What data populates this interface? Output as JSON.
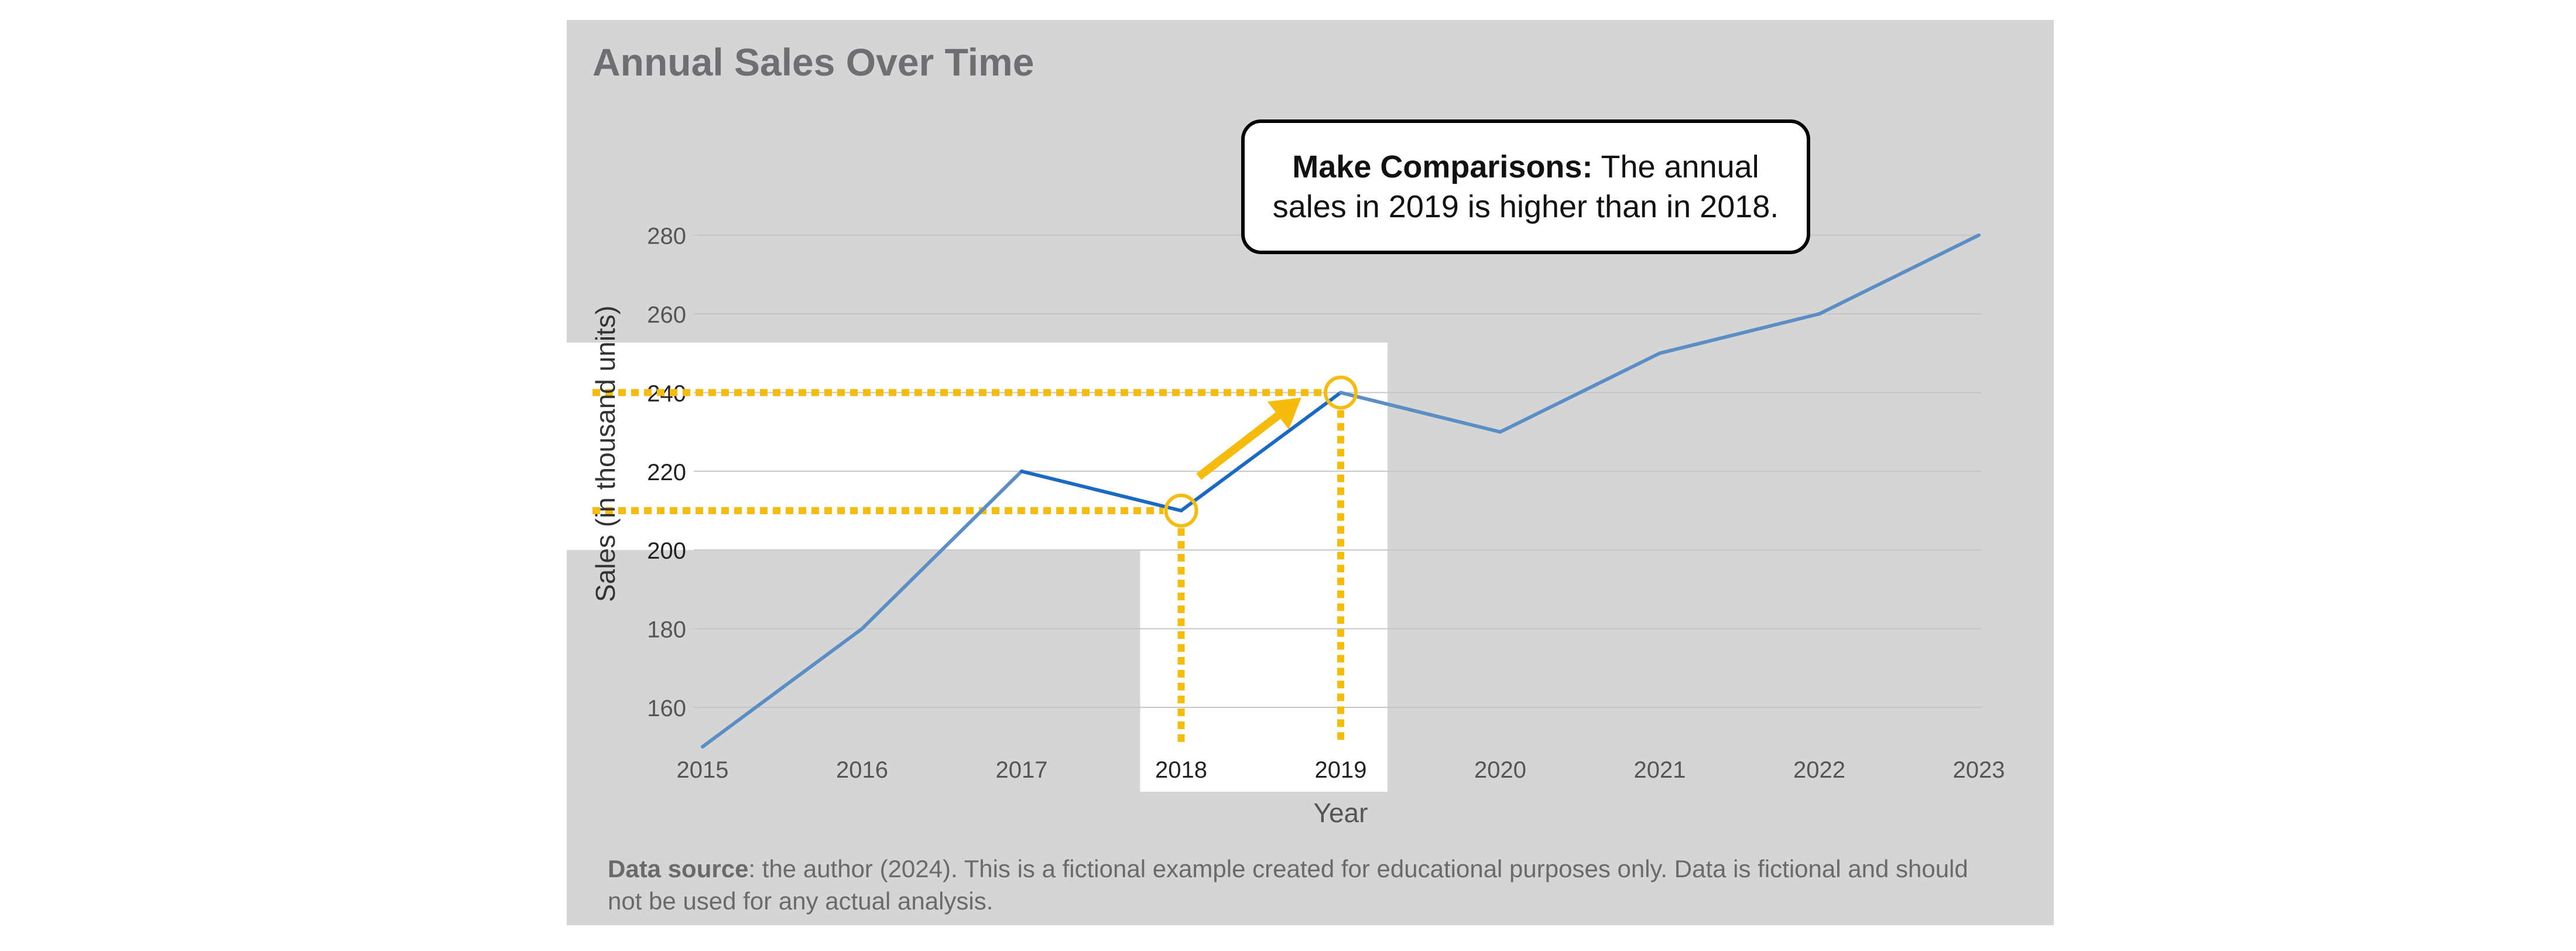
{
  "chart_data": {
    "type": "line",
    "title": "Annual Sales Over Time",
    "xlabel": "Year",
    "ylabel": "Sales (in thousand units)",
    "x": [
      2015,
      2016,
      2017,
      2018,
      2019,
      2020,
      2021,
      2022,
      2023
    ],
    "series": [
      {
        "values": [
          150,
          180,
          220,
          210,
          240,
          230,
          250,
          260,
          280
        ]
      }
    ],
    "yticks": [
      160,
      180,
      200,
      220,
      240,
      260,
      280
    ],
    "ylim": [
      140,
      285
    ],
    "grid": "horizontal",
    "highlight": {
      "years": [
        2018,
        2019
      ],
      "values": [
        210,
        240
      ]
    },
    "colors": {
      "line": "#5b8ec4",
      "line_highlight": "#1a6ac4",
      "highlight": "#f5bc0e",
      "panel": "#d5d5d5",
      "title": "#6e6e73"
    }
  },
  "annotation": {
    "bold": "Make Comparisons:",
    "text": " The annual sales in 2019 is higher than in 2018."
  },
  "footnote": {
    "bold": "Data source",
    "text": ": the author (2024). This is a fictional example created for educational purposes only. Data is fictional and should not be used for any actual analysis."
  }
}
